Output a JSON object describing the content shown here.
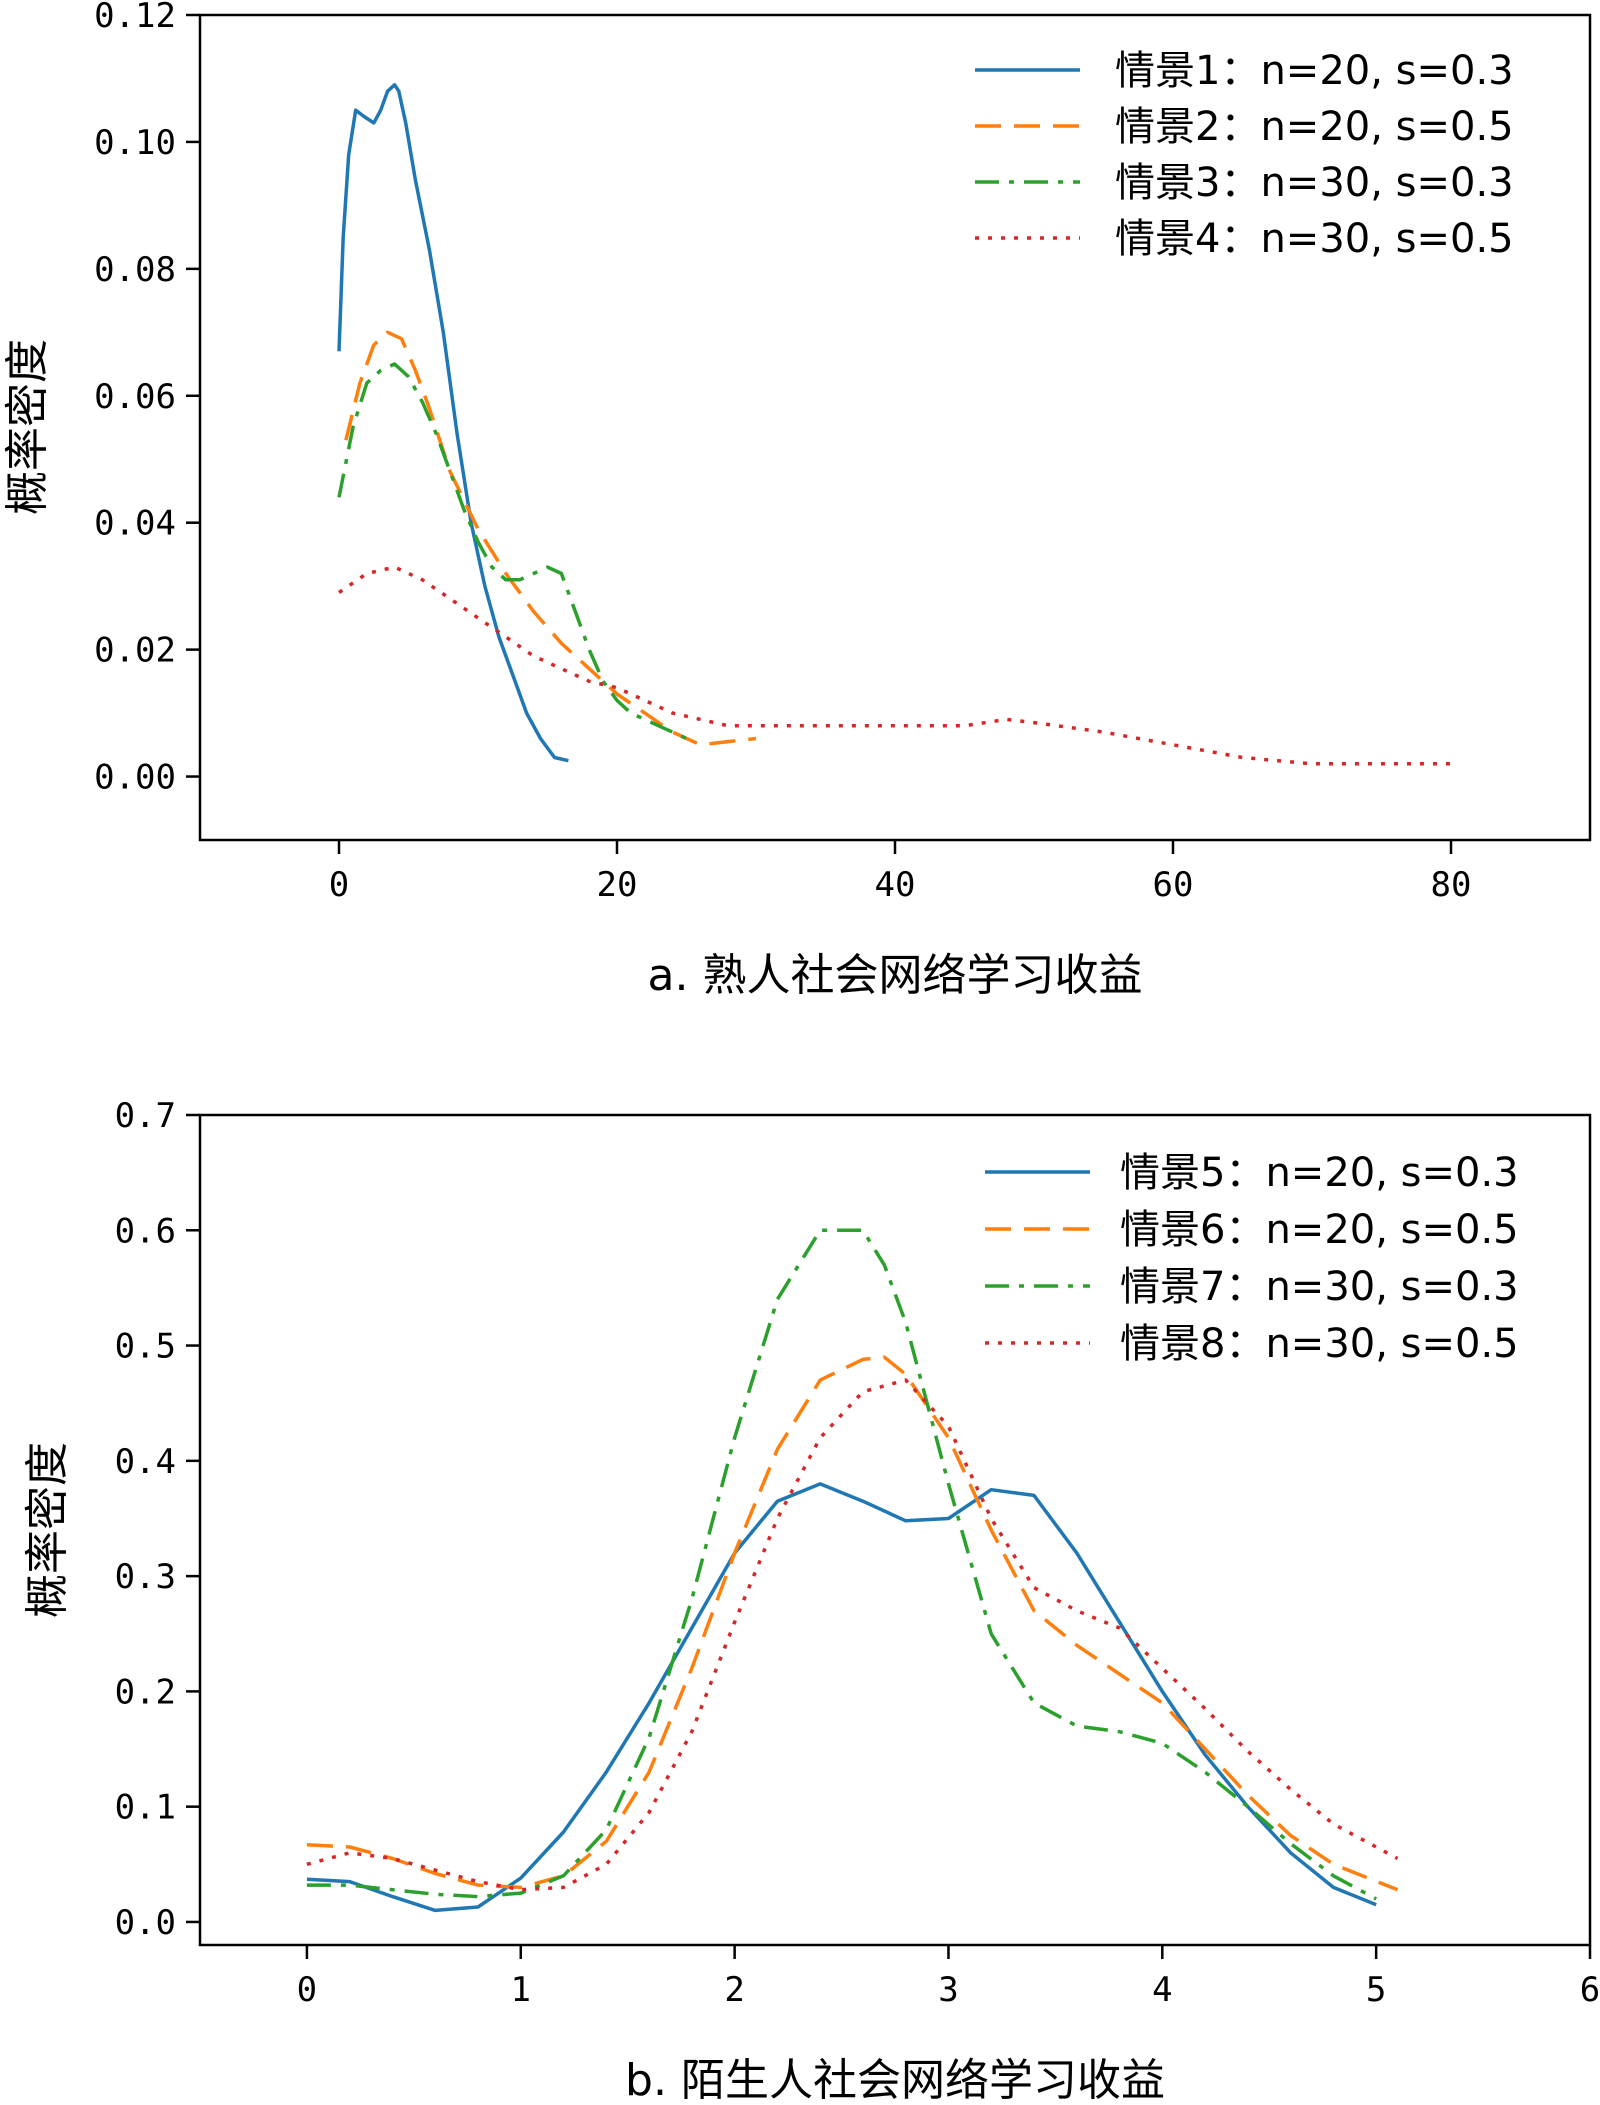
{
  "chart_data": [
    {
      "type": "line",
      "id": "a",
      "title": "",
      "xlabel": "a. 熟人社会网络学习收益",
      "ylabel": "概率密度",
      "xlim": [
        -10,
        90
      ],
      "ylim": [
        -0.01,
        0.12
      ],
      "xticks": [
        0,
        20,
        40,
        60,
        80
      ],
      "xtick_labels": [
        "0",
        "20",
        "40",
        "60",
        "80"
      ],
      "yticks": [
        0.0,
        0.02,
        0.04,
        0.06,
        0.08,
        0.1,
        0.12
      ],
      "ytick_labels": [
        "0.00",
        "0.02",
        "0.04",
        "0.06",
        "0.08",
        "0.10",
        "0.12"
      ],
      "legend_position": "top-right",
      "series": [
        {
          "name": "情景1：n=20, s=0.3",
          "color": "#1f77b4",
          "style": "solid",
          "x": [
            0,
            0.3,
            0.7,
            1.2,
            1.8,
            2.5,
            3.0,
            3.5,
            4.0,
            4.3,
            4.8,
            5.5,
            6.5,
            7.5,
            8.5,
            9.5,
            10.5,
            11.5,
            12.5,
            13.5,
            14.5,
            15.5,
            16.5
          ],
          "y": [
            0.067,
            0.085,
            0.098,
            0.105,
            0.104,
            0.103,
            0.105,
            0.108,
            0.109,
            0.108,
            0.103,
            0.094,
            0.083,
            0.07,
            0.054,
            0.04,
            0.03,
            0.022,
            0.016,
            0.01,
            0.006,
            0.003,
            0.0025
          ]
        },
        {
          "name": "情景2：n=20, s=0.5",
          "color": "#ff7f0e",
          "style": "dashed",
          "x": [
            0.5,
            1.5,
            2.5,
            3.5,
            4.5,
            5.5,
            6.5,
            8.0,
            10.0,
            12.0,
            14.0,
            16.0,
            18.0,
            20.0,
            22.0,
            24.0,
            26.0,
            28.0,
            30.0
          ],
          "y": [
            0.053,
            0.062,
            0.068,
            0.07,
            0.069,
            0.064,
            0.058,
            0.048,
            0.039,
            0.032,
            0.026,
            0.021,
            0.017,
            0.013,
            0.01,
            0.007,
            0.005,
            0.0055,
            0.006
          ]
        },
        {
          "name": "情景3：n=30, s=0.3",
          "color": "#2ca02c",
          "style": "dashdot",
          "x": [
            0,
            1,
            2,
            3,
            4,
            5,
            6,
            7,
            8,
            9,
            10,
            11,
            12,
            13,
            14,
            15,
            16,
            17,
            18,
            19,
            20,
            21,
            22,
            23,
            24,
            25
          ],
          "y": [
            0.044,
            0.055,
            0.062,
            0.064,
            0.065,
            0.063,
            0.059,
            0.054,
            0.048,
            0.042,
            0.037,
            0.033,
            0.031,
            0.031,
            0.032,
            0.033,
            0.032,
            0.026,
            0.02,
            0.015,
            0.012,
            0.01,
            0.009,
            0.008,
            0.007,
            0.006
          ]
        },
        {
          "name": "情景4：n=30, s=0.5",
          "color": "#d62728",
          "style": "dotted",
          "x": [
            0,
            2,
            4,
            6,
            8,
            10,
            12,
            14,
            16,
            18,
            20,
            22,
            24,
            26,
            28,
            30,
            35,
            40,
            45,
            48,
            50,
            55,
            60,
            65,
            70,
            75,
            80
          ],
          "y": [
            0.029,
            0.032,
            0.033,
            0.031,
            0.028,
            0.025,
            0.022,
            0.019,
            0.017,
            0.015,
            0.014,
            0.012,
            0.01,
            0.009,
            0.008,
            0.008,
            0.008,
            0.008,
            0.008,
            0.009,
            0.0085,
            0.007,
            0.005,
            0.003,
            0.002,
            0.002,
            0.002
          ]
        }
      ]
    },
    {
      "type": "line",
      "id": "b",
      "title": "",
      "xlabel": "b. 陌生人社会网络学习收益",
      "ylabel": "概率密度",
      "xlim": [
        -0.5,
        6
      ],
      "ylim": [
        -0.02,
        0.7
      ],
      "xticks": [
        0,
        1,
        2,
        3,
        4,
        5,
        6
      ],
      "xtick_labels": [
        "0",
        "1",
        "2",
        "3",
        "4",
        "5",
        "6"
      ],
      "yticks": [
        0.0,
        0.1,
        0.2,
        0.3,
        0.4,
        0.5,
        0.6,
        0.7
      ],
      "ytick_labels": [
        "0.0",
        "0.1",
        "0.2",
        "0.3",
        "0.4",
        "0.5",
        "0.6",
        "0.7"
      ],
      "legend_position": "top-right",
      "series": [
        {
          "name": "情景5：n=20, s=0.3",
          "color": "#1f77b4",
          "style": "solid",
          "x": [
            0,
            0.2,
            0.4,
            0.6,
            0.8,
            1.0,
            1.2,
            1.4,
            1.6,
            1.8,
            2.0,
            2.2,
            2.4,
            2.6,
            2.8,
            3.0,
            3.2,
            3.4,
            3.6,
            3.8,
            4.0,
            4.2,
            4.4,
            4.6,
            4.8,
            5.0
          ],
          "y": [
            0.037,
            0.035,
            0.022,
            0.01,
            0.013,
            0.038,
            0.078,
            0.13,
            0.19,
            0.255,
            0.32,
            0.365,
            0.38,
            0.365,
            0.348,
            0.35,
            0.375,
            0.37,
            0.32,
            0.26,
            0.2,
            0.145,
            0.1,
            0.06,
            0.03,
            0.015
          ]
        },
        {
          "name": "情景6：n=20, s=0.5",
          "color": "#ff7f0e",
          "style": "dashed",
          "x": [
            0,
            0.2,
            0.4,
            0.6,
            0.8,
            1.0,
            1.2,
            1.4,
            1.6,
            1.8,
            2.0,
            2.2,
            2.4,
            2.6,
            2.7,
            2.8,
            3.0,
            3.2,
            3.4,
            3.6,
            3.8,
            4.0,
            4.2,
            4.4,
            4.6,
            4.8,
            5.1
          ],
          "y": [
            0.067,
            0.065,
            0.055,
            0.042,
            0.032,
            0.03,
            0.04,
            0.07,
            0.13,
            0.22,
            0.32,
            0.41,
            0.47,
            0.488,
            0.49,
            0.475,
            0.42,
            0.34,
            0.27,
            0.24,
            0.215,
            0.19,
            0.15,
            0.11,
            0.075,
            0.05,
            0.028
          ]
        },
        {
          "name": "情景7：n=30, s=0.3",
          "color": "#2ca02c",
          "style": "dashdot",
          "x": [
            0,
            0.2,
            0.4,
            0.6,
            0.8,
            1.0,
            1.2,
            1.4,
            1.6,
            1.8,
            2.0,
            2.2,
            2.4,
            2.6,
            2.7,
            2.8,
            3.0,
            3.2,
            3.4,
            3.6,
            3.8,
            4.0,
            4.2,
            4.4,
            4.6,
            4.8,
            5.0
          ],
          "y": [
            0.032,
            0.032,
            0.028,
            0.024,
            0.022,
            0.025,
            0.04,
            0.08,
            0.16,
            0.28,
            0.42,
            0.54,
            0.6,
            0.6,
            0.57,
            0.52,
            0.38,
            0.25,
            0.19,
            0.17,
            0.165,
            0.155,
            0.13,
            0.1,
            0.068,
            0.04,
            0.02
          ]
        },
        {
          "name": "情景8：n=30, s=0.5",
          "color": "#d62728",
          "style": "dotted",
          "x": [
            0,
            0.2,
            0.4,
            0.6,
            0.8,
            1.0,
            1.2,
            1.4,
            1.6,
            1.8,
            2.0,
            2.2,
            2.4,
            2.6,
            2.8,
            3.0,
            3.2,
            3.4,
            3.6,
            3.8,
            4.0,
            4.2,
            4.4,
            4.6,
            4.8,
            5.1
          ],
          "y": [
            0.05,
            0.06,
            0.055,
            0.045,
            0.035,
            0.028,
            0.03,
            0.05,
            0.095,
            0.165,
            0.26,
            0.35,
            0.42,
            0.46,
            0.47,
            0.43,
            0.35,
            0.29,
            0.27,
            0.255,
            0.22,
            0.185,
            0.148,
            0.115,
            0.085,
            0.055
          ]
        }
      ]
    }
  ]
}
